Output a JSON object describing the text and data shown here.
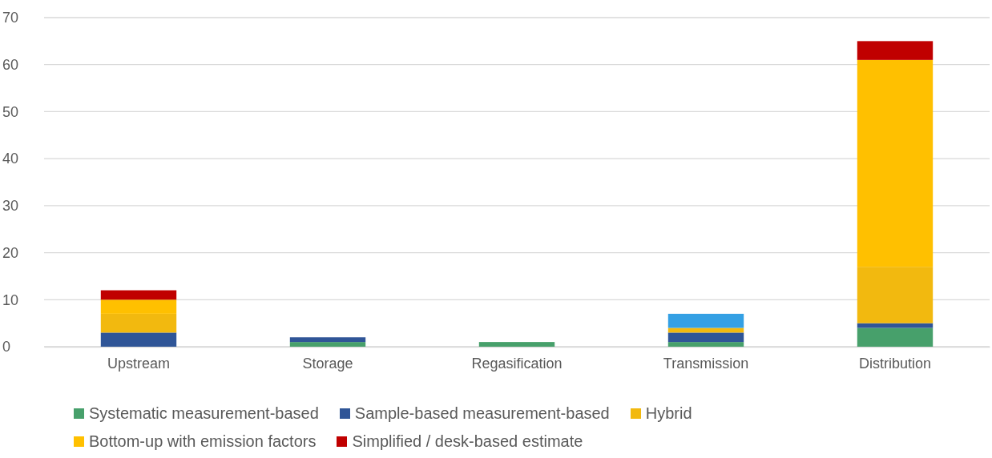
{
  "chart_data": {
    "type": "bar",
    "stacked": true,
    "categories": [
      "Upstream",
      "Storage",
      "Regasification",
      "Transmission",
      "Distribution"
    ],
    "series": [
      {
        "name": "Systematic measurement-based",
        "color": "#47a06b",
        "values": [
          0,
          1,
          1,
          1,
          4
        ]
      },
      {
        "name": "Sample-based measurement-based",
        "color": "#2f5597",
        "values": [
          3,
          1,
          0,
          2,
          1
        ]
      },
      {
        "name": "Hybrid",
        "color": "#f2b90f",
        "values": [
          4,
          0,
          0,
          1,
          12
        ]
      },
      {
        "name": "Bottom-up with emission factors",
        "color": "#ffc000",
        "values": [
          3,
          0,
          0,
          0,
          44
        ]
      },
      {
        "name": "Simplified / desk-based estimate",
        "color": "#c00000",
        "values": [
          2,
          0,
          0,
          0,
          4
        ]
      },
      {
        "color": "#34a0e4",
        "values": [
          0,
          0,
          0,
          3,
          0
        ]
      }
    ],
    "ylim": [
      0,
      70
    ],
    "yticks": [
      0,
      10,
      20,
      30,
      40,
      50,
      60,
      70
    ],
    "grid": "y",
    "legend": "bottom"
  }
}
